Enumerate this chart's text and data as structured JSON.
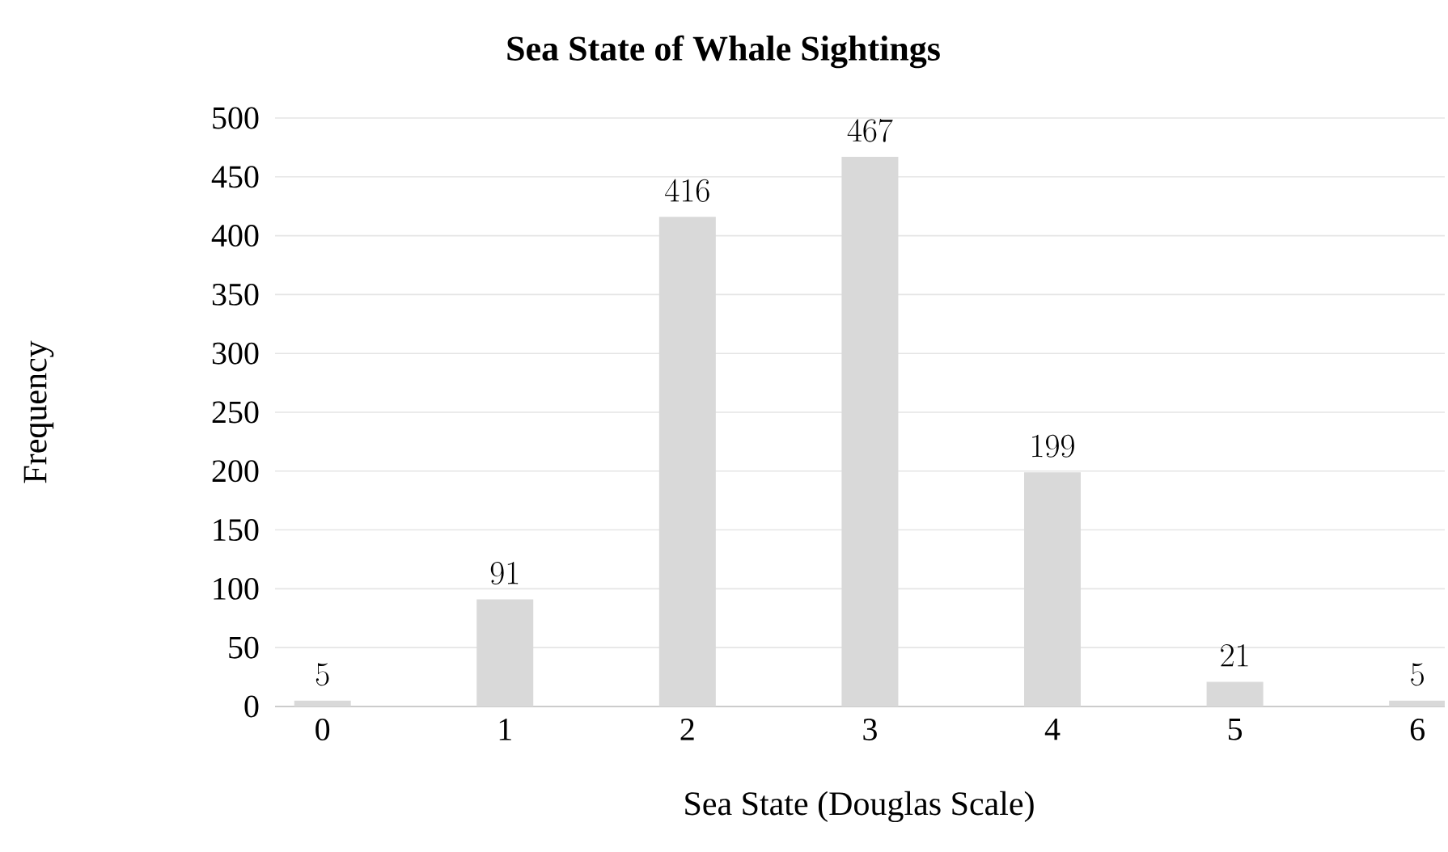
{
  "chart_data": {
    "type": "bar",
    "title": "Sea State of Whale Sightings",
    "xlabel": "Sea State (Douglas Scale)",
    "ylabel": "Frequency",
    "categories": [
      "0",
      "1",
      "2",
      "3",
      "4",
      "5",
      "6"
    ],
    "values": [
      5,
      91,
      416,
      467,
      199,
      21,
      5
    ],
    "color": "#d9d9d9",
    "ylim": [
      0,
      500
    ],
    "yticks": [
      0,
      50,
      100,
      150,
      200,
      250,
      300,
      350,
      400,
      450,
      500
    ],
    "grid": "y",
    "data_labels": true
  }
}
